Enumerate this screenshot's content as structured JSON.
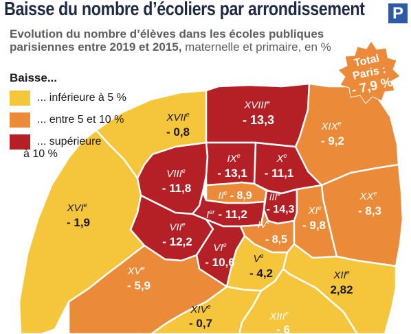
{
  "header": {
    "title": "Baisse du nombre d’écoliers par arrondissement",
    "logo_letter": "P",
    "subtitle_bold": "Evolution du nombre d’élèves dans les écoles publiques parisiennes entre 2019 et 2015,",
    "subtitle_normal": " maternelle et primaire, en %"
  },
  "legend": {
    "title": "Baisse...",
    "items": [
      {
        "label": "... inférieure à 5 %",
        "color": "#f5c53b"
      },
      {
        "label": "... entre 5 et 10 %",
        "color": "#eb8a38"
      },
      {
        "label": "... supérieure",
        "label2": "à 10 %",
        "color": "#b42026"
      }
    ]
  },
  "total_badge": {
    "line1": "Total",
    "line2": "Paris :",
    "value": "- 7,9 %",
    "color": "#eb8a38"
  },
  "colors": {
    "low": "#f5c53b",
    "mid": "#eb8a38",
    "high": "#b42026",
    "border": "#ffffff",
    "dark_text": "#1a1a1a",
    "light_text": "#ffffff"
  },
  "districts": [
    {
      "id": "i",
      "name": "I",
      "sup": "er",
      "value": "- 11,2",
      "change": -11.2
    },
    {
      "id": "ii",
      "name": "II",
      "sup": "e",
      "value": "- 8,9",
      "change": -8.9
    },
    {
      "id": "iii",
      "name": "III",
      "sup": "e",
      "value": "",
      "change": null
    },
    {
      "id": "iv",
      "name": "IV",
      "sup": "e",
      "value": "- 8,5",
      "change": -8.5
    },
    {
      "id": "v",
      "name": "V",
      "sup": "e",
      "value": "- 4,2",
      "change": -4.2
    },
    {
      "id": "vi",
      "name": "VI",
      "sup": "e",
      "value": "- 10,6",
      "change": -10.6
    },
    {
      "id": "vii",
      "name": "VII",
      "sup": "e",
      "value": "- 12,2",
      "change": -12.2
    },
    {
      "id": "viii",
      "name": "VIII",
      "sup": "e",
      "value": "- 11,8",
      "change": -11.8
    },
    {
      "id": "ix",
      "name": "IX",
      "sup": "e",
      "value": "- 13,1",
      "change": -13.1
    },
    {
      "id": "x",
      "name": "X",
      "sup": "e",
      "value": "- 11,1",
      "change": -11.1
    },
    {
      "id": "xi",
      "name": "XI",
      "sup": "e",
      "value": "- 9,8",
      "change": -9.8
    },
    {
      "id": "xii",
      "name": "XII",
      "sup": "e",
      "value": "2,82",
      "change": 2.82
    },
    {
      "id": "xiii",
      "name": "XIII",
      "sup": "e",
      "value": "- 6",
      "change": -6
    },
    {
      "id": "xiv",
      "name": "XIV",
      "sup": "e",
      "value": "- 0,7",
      "change": -0.7
    },
    {
      "id": "xv",
      "name": "XV",
      "sup": "e",
      "value": "- 5,9",
      "change": -5.9
    },
    {
      "id": "xvi",
      "name": "XVI",
      "sup": "e",
      "value": "- 1,9",
      "change": -1.9
    },
    {
      "id": "xvii",
      "name": "XVII",
      "sup": "e",
      "value": "- 0,8",
      "change": -0.8
    },
    {
      "id": "xviii",
      "name": "XVIII",
      "sup": "e",
      "value": "- 13,3",
      "change": -13.3
    },
    {
      "id": "xix",
      "name": "XIX",
      "sup": "e",
      "value": "- 9,2",
      "change": -9.2
    },
    {
      "id": "xx",
      "name": "XX",
      "sup": "e",
      "value": "- 8,3",
      "change": -8.3
    },
    {
      "id": "iii-value",
      "name": "",
      "sup": "",
      "value": "- 14,3",
      "change": -14.3
    }
  ]
}
